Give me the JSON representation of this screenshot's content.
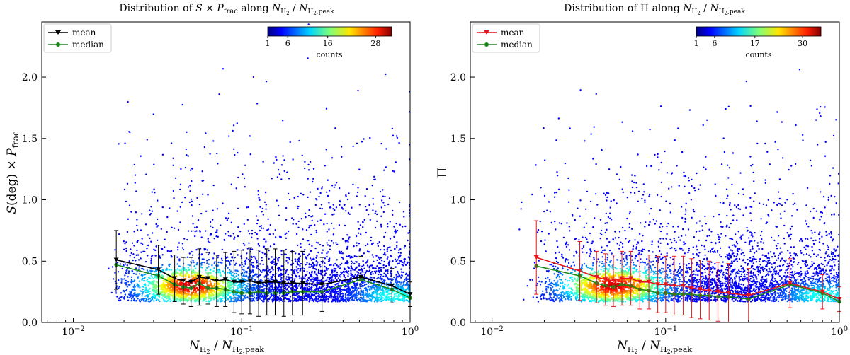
{
  "chart_data": [
    {
      "type": "scatter",
      "title": "Distribution of S × P_frac along N_H2 / N_H2,peak",
      "title_parts": {
        "prefix": "Distribution of ",
        "s": "S",
        "times": " × ",
        "p": "P",
        "p_sub": "frac",
        "along": " along ",
        "n1": "N",
        "n1_sub": "H",
        "n1_subsub": "2",
        "slash": " / ",
        "n2": "N",
        "n2_sub": "H",
        "n2_subsub": "2",
        "n2_tail": ",peak"
      },
      "xlabel_parts": {
        "n1": "N",
        "n1_sub": "H",
        "n1_subsub": "2",
        "slash": " / ",
        "n2": "N",
        "n2_sub": "H",
        "n2_subsub": "2",
        "n2_tail": ",peak"
      },
      "ylabel_parts": {
        "s": "S",
        "deg": "(deg)",
        "times": " × ",
        "p": "P",
        "p_sub": "frac"
      },
      "x_scale": "log",
      "xlim": [
        0.0065,
        1.0
      ],
      "ylim": [
        0.0,
        2.45
      ],
      "x_ticks": [
        {
          "value": 0.01,
          "label": "10",
          "exp": "−2"
        },
        {
          "value": 0.1,
          "label": "10",
          "exp": "−1"
        },
        {
          "value": 1.0,
          "label": "10",
          "exp": "0"
        }
      ],
      "y_ticks": [
        "0.0",
        "0.5",
        "1.0",
        "1.5",
        "2.0"
      ],
      "grid": false,
      "legend": {
        "placement": "top-left",
        "entries": [
          {
            "label": "mean",
            "color": "#000000",
            "marker": "triangle-down"
          },
          {
            "label": "median",
            "color": "#1a8a1a",
            "marker": "circle"
          }
        ]
      },
      "colorbar": {
        "label": "counts",
        "placement": "top-right",
        "ticks": [
          1,
          6,
          16,
          28
        ],
        "range": [
          1,
          32
        ]
      },
      "series": [
        {
          "name": "mean",
          "color": "#000000",
          "x": [
            0.018,
            0.032,
            0.04,
            0.045,
            0.05,
            0.056,
            0.063,
            0.071,
            0.08,
            0.09,
            0.1,
            0.112,
            0.126,
            0.141,
            0.158,
            0.178,
            0.2,
            0.23,
            0.3,
            0.51,
            0.78,
            1.0
          ],
          "y": [
            0.51,
            0.43,
            0.36,
            0.34,
            0.33,
            0.37,
            0.36,
            0.34,
            0.35,
            0.33,
            0.33,
            0.34,
            0.32,
            0.33,
            0.33,
            0.32,
            0.32,
            0.32,
            0.31,
            0.37,
            0.3,
            0.23
          ],
          "yerr": [
            0.24,
            0.2,
            0.19,
            0.19,
            0.2,
            0.23,
            0.21,
            0.21,
            0.22,
            0.25,
            0.26,
            0.27,
            0.27,
            0.27,
            0.27,
            0.27,
            0.26,
            0.26,
            0.22,
            0.17,
            0.14,
            0.1
          ]
        },
        {
          "name": "median",
          "color": "#1a8a1a",
          "x": [
            0.018,
            0.032,
            0.04,
            0.045,
            0.05,
            0.056,
            0.063,
            0.071,
            0.08,
            0.09,
            0.1,
            0.112,
            0.126,
            0.141,
            0.158,
            0.178,
            0.2,
            0.23,
            0.3,
            0.51,
            0.78,
            1.0
          ],
          "y": [
            0.47,
            0.38,
            0.31,
            0.29,
            0.28,
            0.32,
            0.28,
            0.28,
            0.27,
            0.25,
            0.24,
            0.24,
            0.25,
            0.24,
            0.24,
            0.24,
            0.25,
            0.25,
            0.25,
            0.35,
            0.27,
            0.2
          ]
        }
      ],
      "scatter_points": 4200,
      "scatter_seed": 11
    },
    {
      "type": "scatter",
      "title": "Distribution of Π along N_H2 / N_H2,peak",
      "title_parts": {
        "prefix": "Distribution of ",
        "pi": "Π",
        "along": " along ",
        "n1": "N",
        "n1_sub": "H",
        "n1_subsub": "2",
        "slash": " / ",
        "n2": "N",
        "n2_sub": "H",
        "n2_subsub": "2",
        "n2_tail": ",peak"
      },
      "xlabel_parts": {
        "n1": "N",
        "n1_sub": "H",
        "n1_subsub": "2",
        "slash": " / ",
        "n2": "N",
        "n2_sub": "H",
        "n2_subsub": "2",
        "n2_tail": ",peak"
      },
      "ylabel": "Π",
      "x_scale": "log",
      "xlim": [
        0.0075,
        1.0
      ],
      "ylim": [
        0.0,
        2.45
      ],
      "x_ticks": [
        {
          "value": 0.01,
          "label": "10",
          "exp": "−2"
        },
        {
          "value": 0.1,
          "label": "10",
          "exp": "−1"
        },
        {
          "value": 1.0,
          "label": "10",
          "exp": "0"
        }
      ],
      "y_ticks": [
        "0.0",
        "0.5",
        "1.0",
        "1.5",
        "2.0"
      ],
      "grid": false,
      "legend": {
        "placement": "top-left",
        "entries": [
          {
            "label": "mean",
            "color": "#e8161b",
            "marker": "triangle-down"
          },
          {
            "label": "median",
            "color": "#1a8a1a",
            "marker": "circle"
          }
        ]
      },
      "colorbar": {
        "label": "counts",
        "placement": "top-right",
        "ticks": [
          1,
          6,
          17,
          30
        ],
        "range": [
          1,
          35
        ]
      },
      "series": [
        {
          "name": "mean",
          "color": "#e8161b",
          "x": [
            0.018,
            0.032,
            0.04,
            0.045,
            0.05,
            0.056,
            0.063,
            0.071,
            0.08,
            0.09,
            0.1,
            0.112,
            0.126,
            0.141,
            0.158,
            0.178,
            0.2,
            0.23,
            0.3,
            0.52,
            0.8,
            1.0
          ],
          "y": [
            0.53,
            0.42,
            0.37,
            0.35,
            0.34,
            0.36,
            0.36,
            0.33,
            0.33,
            0.31,
            0.31,
            0.3,
            0.3,
            0.28,
            0.27,
            0.26,
            0.25,
            0.24,
            0.22,
            0.32,
            0.25,
            0.19
          ],
          "yerr": [
            0.3,
            0.24,
            0.21,
            0.21,
            0.21,
            0.22,
            0.22,
            0.22,
            0.22,
            0.23,
            0.23,
            0.24,
            0.24,
            0.24,
            0.24,
            0.24,
            0.24,
            0.24,
            0.22,
            0.2,
            0.14,
            0.1
          ]
        },
        {
          "name": "median",
          "color": "#1a8a1a",
          "x": [
            0.018,
            0.032,
            0.04,
            0.045,
            0.05,
            0.056,
            0.063,
            0.071,
            0.08,
            0.09,
            0.1,
            0.112,
            0.126,
            0.141,
            0.158,
            0.178,
            0.2,
            0.23,
            0.3,
            0.52,
            0.8,
            1.0
          ],
          "y": [
            0.46,
            0.38,
            0.32,
            0.3,
            0.29,
            0.31,
            0.3,
            0.27,
            0.26,
            0.24,
            0.24,
            0.23,
            0.23,
            0.23,
            0.22,
            0.22,
            0.21,
            0.21,
            0.19,
            0.31,
            0.24,
            0.17
          ]
        }
      ],
      "scatter_points": 4200,
      "scatter_seed": 23
    }
  ]
}
